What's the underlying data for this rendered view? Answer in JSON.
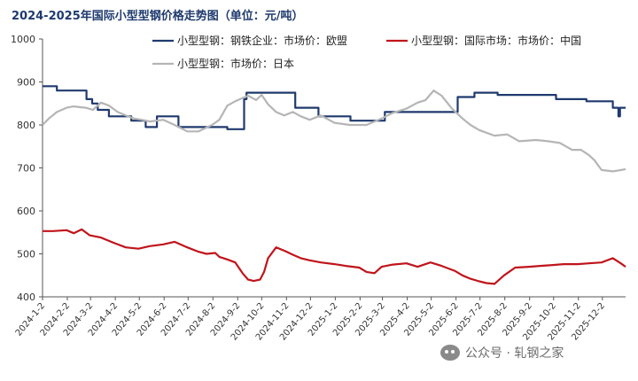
{
  "chart_data": {
    "type": "line",
    "title": "2024-2025年国际小型型钢价格走势图（单位：元/吨）",
    "xlabel": "",
    "ylabel": "",
    "ylim": [
      400,
      1000
    ],
    "yticks": [
      400,
      500,
      600,
      700,
      800,
      900,
      1000
    ],
    "grid": false,
    "legend_position": "top",
    "x_tick_labels": [
      "2024-1-2",
      "2024-2-2",
      "2024-3-2",
      "2024-4-2",
      "2024-5-2",
      "2024-6-2",
      "2024-7-2",
      "2024-8-2",
      "2024-9-2",
      "2024-10-2",
      "2024-11-2",
      "2024-12-2",
      "2025-1-2",
      "2025-2-2",
      "2025-3-2",
      "2025-4-2",
      "2025-5-2",
      "2025-6-2",
      "2025-7-2",
      "2025-8-2",
      "2025-9-2",
      "2025-10-2",
      "2025-11-2",
      "2025-12-2"
    ],
    "x_range": [
      "2024-01-02",
      "2025-12-31"
    ],
    "series": [
      {
        "name": "小型型钢：钢铁企业：市场价：欧盟",
        "color": "#1f3a6e",
        "shape": "step",
        "x": [
          "2024-01-02",
          "2024-01-20",
          "2024-02-26",
          "2024-03-04",
          "2024-03-11",
          "2024-03-25",
          "2024-04-22",
          "2024-05-10",
          "2024-05-24",
          "2024-06-20",
          "2024-07-15",
          "2024-08-20",
          "2024-09-10",
          "2024-09-13",
          "2024-10-10",
          "2024-11-13",
          "2024-12-12",
          "2025-01-13",
          "2025-01-21",
          "2025-02-20",
          "2025-03-05",
          "2025-03-24",
          "2025-04-21",
          "2025-05-05",
          "2025-05-28",
          "2025-06-04",
          "2025-06-12",
          "2025-06-25",
          "2025-07-24",
          "2025-09-05",
          "2025-10-05",
          "2025-11-12",
          "2025-11-25",
          "2025-12-15",
          "2025-12-20",
          "2025-12-22",
          "2025-12-24",
          "2025-12-31"
        ],
        "y": [
          890,
          880,
          860,
          850,
          835,
          820,
          810,
          795,
          820,
          795,
          795,
          790,
          860,
          875,
          875,
          840,
          820,
          820,
          810,
          810,
          830,
          830,
          830,
          830,
          830,
          865,
          865,
          875,
          870,
          870,
          860,
          855,
          855,
          840,
          840,
          820,
          840,
          840
        ]
      },
      {
        "name": "小型型钢：国际市场：市场价：中国",
        "color": "#c0141b",
        "shape": "line",
        "x": [
          "2024-01-02",
          "2024-01-15",
          "2024-02-01",
          "2024-02-10",
          "2024-02-20",
          "2024-03-01",
          "2024-03-15",
          "2024-04-01",
          "2024-04-15",
          "2024-05-01",
          "2024-05-15",
          "2024-06-01",
          "2024-06-15",
          "2024-07-01",
          "2024-07-15",
          "2024-07-25",
          "2024-08-05",
          "2024-08-10",
          "2024-08-20",
          "2024-08-30",
          "2024-09-08",
          "2024-09-15",
          "2024-09-22",
          "2024-09-30",
          "2024-10-05",
          "2024-10-10",
          "2024-10-20",
          "2024-11-01",
          "2024-11-10",
          "2024-11-20",
          "2024-12-01",
          "2024-12-15",
          "2025-01-01",
          "2025-01-15",
          "2025-02-01",
          "2025-02-10",
          "2025-02-20",
          "2025-03-01",
          "2025-03-15",
          "2025-04-01",
          "2025-04-15",
          "2025-05-01",
          "2025-05-15",
          "2025-06-01",
          "2025-06-10",
          "2025-06-20",
          "2025-07-01",
          "2025-07-10",
          "2025-07-20",
          "2025-08-01",
          "2025-08-15",
          "2025-09-01",
          "2025-09-15",
          "2025-10-01",
          "2025-10-15",
          "2025-11-01",
          "2025-11-15",
          "2025-12-01",
          "2025-12-15",
          "2025-12-25",
          "2025-12-31"
        ],
        "y": [
          553,
          553,
          555,
          548,
          557,
          543,
          538,
          525,
          515,
          512,
          518,
          522,
          528,
          515,
          505,
          500,
          502,
          493,
          487,
          480,
          455,
          440,
          437,
          440,
          458,
          490,
          515,
          506,
          498,
          490,
          485,
          480,
          476,
          472,
          468,
          458,
          455,
          470,
          475,
          478,
          470,
          480,
          472,
          460,
          450,
          442,
          436,
          432,
          430,
          450,
          468,
          470,
          472,
          474,
          476,
          476,
          478,
          480,
          490,
          478,
          470
        ]
      },
      {
        "name": "小型型钢：市场价：日本",
        "color": "#b5b5b5",
        "shape": "line",
        "x": [
          "2024-01-02",
          "2024-01-10",
          "2024-01-20",
          "2024-02-01",
          "2024-02-10",
          "2024-02-25",
          "2024-03-05",
          "2024-03-15",
          "2024-03-25",
          "2024-04-05",
          "2024-04-15",
          "2024-04-25",
          "2024-05-05",
          "2024-05-15",
          "2024-06-01",
          "2024-06-15",
          "2024-07-01",
          "2024-07-15",
          "2024-08-01",
          "2024-08-10",
          "2024-08-20",
          "2024-08-30",
          "2024-09-05",
          "2024-09-15",
          "2024-09-25",
          "2024-10-02",
          "2024-10-10",
          "2024-10-20",
          "2024-10-30",
          "2024-11-10",
          "2024-11-20",
          "2024-12-01",
          "2024-12-15",
          "2025-01-01",
          "2025-01-20",
          "2025-02-10",
          "2025-03-01",
          "2025-03-15",
          "2025-04-01",
          "2025-04-15",
          "2025-04-25",
          "2025-05-05",
          "2025-05-15",
          "2025-05-28",
          "2025-06-10",
          "2025-06-20",
          "2025-07-01",
          "2025-07-20",
          "2025-08-05",
          "2025-08-20",
          "2025-09-10",
          "2025-09-25",
          "2025-10-10",
          "2025-10-25",
          "2025-11-05",
          "2025-11-15",
          "2025-11-22",
          "2025-12-01",
          "2025-12-15",
          "2025-12-31"
        ],
        "y": [
          800,
          815,
          830,
          840,
          843,
          840,
          835,
          852,
          845,
          830,
          822,
          815,
          812,
          808,
          812,
          800,
          785,
          785,
          800,
          812,
          845,
          855,
          860,
          868,
          858,
          870,
          848,
          830,
          822,
          830,
          820,
          812,
          822,
          805,
          800,
          800,
          815,
          828,
          838,
          852,
          858,
          880,
          868,
          838,
          815,
          800,
          788,
          775,
          778,
          762,
          765,
          762,
          758,
          742,
          742,
          730,
          718,
          695,
          692,
          697
        ]
      }
    ]
  },
  "watermark": {
    "text": "公众号 · 轧钢之家",
    "icon": "wechat-icon"
  }
}
